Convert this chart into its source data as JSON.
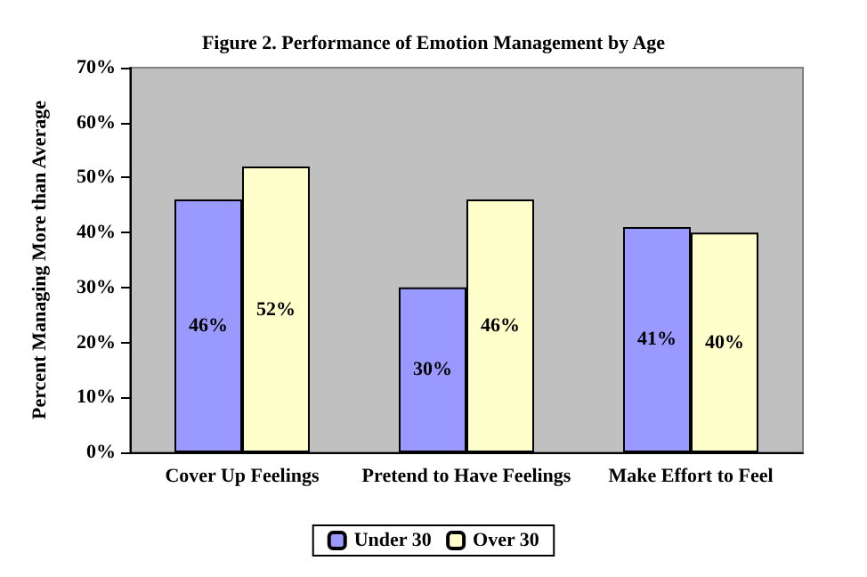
{
  "chart_data": {
    "type": "bar",
    "title": "Figure 2. Performance of Emotion Management by Age",
    "ylabel": "Percent Managing More than Average",
    "categories": [
      "Cover Up Feelings",
      "Pretend to Have Feelings",
      "Make Effort to Feel"
    ],
    "series": [
      {
        "name": "Under 30",
        "color": "#9999ff",
        "values": [
          46,
          30,
          41
        ],
        "value_labels": [
          "46%",
          "30%",
          "41%"
        ]
      },
      {
        "name": "Over 30",
        "color": "#ffffcc",
        "values": [
          52,
          46,
          40
        ],
        "value_labels": [
          "52%",
          "46%",
          "40%"
        ]
      }
    ],
    "ylim": [
      0,
      70
    ],
    "yticks": [
      {
        "value": 0,
        "label": "0%"
      },
      {
        "value": 10,
        "label": "10%"
      },
      {
        "value": 20,
        "label": "20%"
      },
      {
        "value": 30,
        "label": "30%"
      },
      {
        "value": 40,
        "label": "40%"
      },
      {
        "value": 50,
        "label": "50%"
      },
      {
        "value": 60,
        "label": "60%"
      },
      {
        "value": 70,
        "label": "70%"
      }
    ],
    "grid": false,
    "legend": "bottom"
  }
}
